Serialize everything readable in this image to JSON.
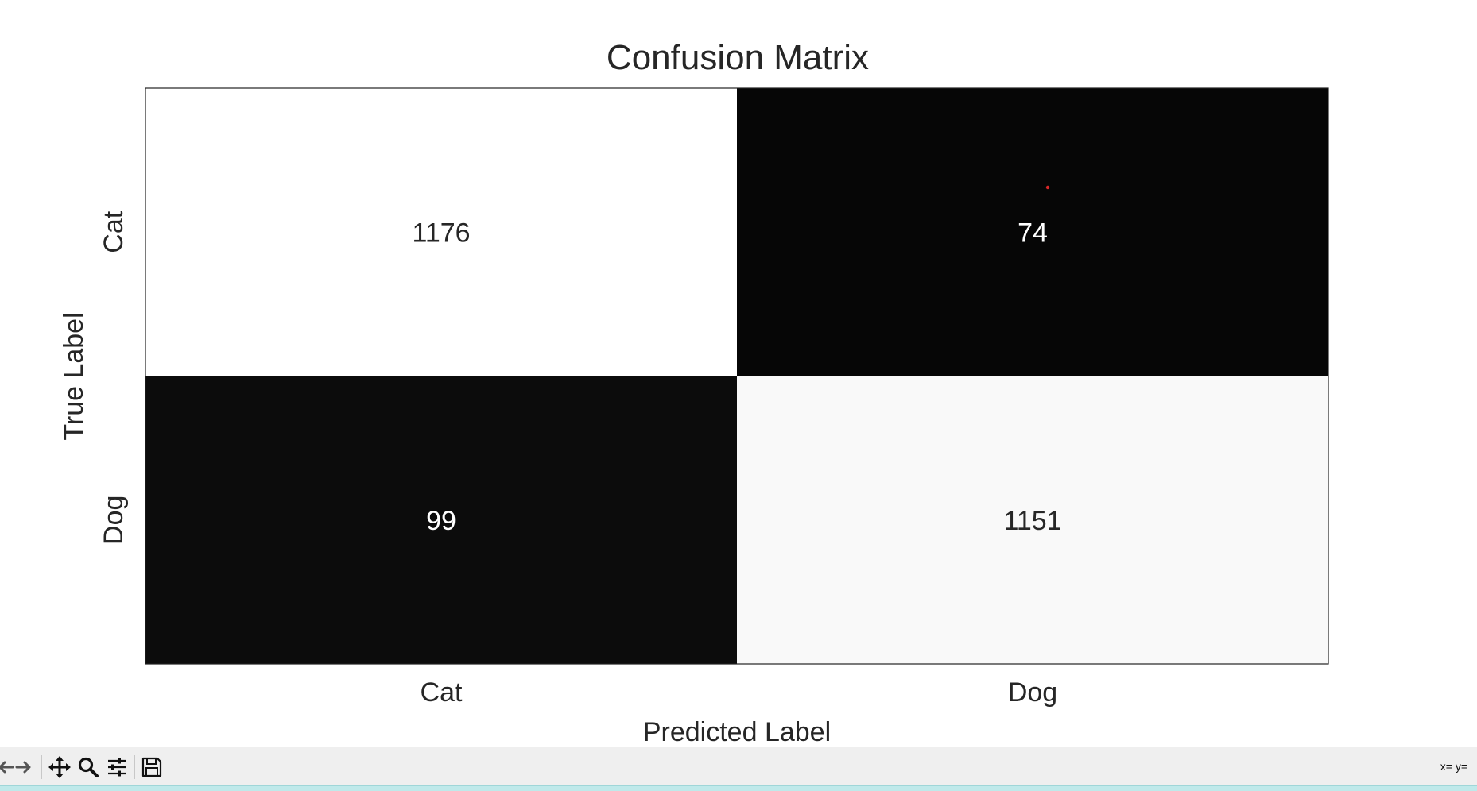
{
  "window": {
    "coordinates_text": "x= y="
  },
  "toolbar": {
    "items": [
      {
        "name": "back-button",
        "icon": "arrow-left-icon"
      },
      {
        "name": "forward-button",
        "icon": "arrow-right-icon"
      },
      {
        "name": "pan-button",
        "icon": "move-icon"
      },
      {
        "name": "zoom-button",
        "icon": "magnifier-icon"
      },
      {
        "name": "configure-subplots-button",
        "icon": "sliders-icon"
      },
      {
        "name": "save-button",
        "icon": "floppy-disk-icon"
      }
    ]
  },
  "chart_data": {
    "type": "heatmap",
    "title": "Confusion Matrix",
    "xlabel": "Predicted Label",
    "ylabel": "True Label",
    "x_categories": [
      "Cat",
      "Dog"
    ],
    "y_categories": [
      "Cat",
      "Dog"
    ],
    "values": [
      [
        1176,
        74
      ],
      [
        99,
        1151
      ]
    ],
    "colormap": "grayscale (low = black, high = white)",
    "grid": false,
    "colorbar": false,
    "annotations": [
      {
        "color": "#d62728",
        "note": "small red marker dot in Cat/Dog cell"
      }
    ]
  }
}
